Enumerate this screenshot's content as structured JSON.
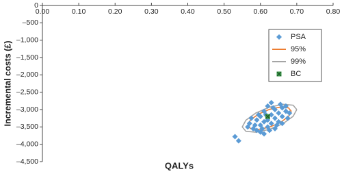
{
  "chart_data": {
    "type": "scatter",
    "xlabel": "QALYs",
    "ylabel": "Incremental costs (£)",
    "xlim": [
      0,
      0.8
    ],
    "ylim": [
      -4500,
      0
    ],
    "xticks": [
      {
        "value": 0,
        "label": "0.00"
      },
      {
        "value": 0.1,
        "label": "0.10"
      },
      {
        "value": 0.2,
        "label": "0.20"
      },
      {
        "value": 0.3,
        "label": "0.30"
      },
      {
        "value": 0.4,
        "label": "0.40"
      },
      {
        "value": 0.5,
        "label": "0.50"
      },
      {
        "value": 0.6,
        "label": "0.60"
      },
      {
        "value": 0.7,
        "label": "0.70"
      },
      {
        "value": 0.8,
        "label": "0.80"
      }
    ],
    "yticks": [
      0,
      {
        "value": -500,
        "label": "–500"
      },
      {
        "value": -1000,
        "label": "–1,000"
      },
      {
        "value": -1500,
        "label": "–1,500"
      },
      {
        "value": -2000,
        "label": "–2,000"
      },
      {
        "value": -2500,
        "label": "–2,500"
      },
      {
        "value": -3000,
        "label": "–3,000"
      },
      {
        "value": -3500,
        "label": "–3,500"
      },
      {
        "value": -4000,
        "label": "–4,000"
      },
      {
        "value": -4500,
        "label": "–4,500"
      }
    ],
    "grid": false,
    "legend": "right",
    "series": [
      {
        "name": "PSA",
        "color": "#5b9bd5",
        "marker": "diamond",
        "x": [
          0.53,
          0.54,
          0.57,
          0.58,
          0.59,
          0.6,
          0.6,
          0.61,
          0.61,
          0.62,
          0.62,
          0.63,
          0.63,
          0.64,
          0.64,
          0.65,
          0.65,
          0.66,
          0.66,
          0.67,
          0.62,
          0.63,
          0.68,
          0.59,
          0.6,
          0.575,
          0.605,
          0.615,
          0.625,
          0.635,
          0.645,
          0.655,
          0.585,
          0.595,
          0.565,
          0.67,
          0.61,
          0.64,
          0.66,
          0.675
        ],
        "values": [
          -3780,
          -3900,
          -3400,
          -3550,
          -3300,
          -3450,
          -3200,
          -3350,
          -3050,
          -3500,
          -3300,
          -3150,
          -3400,
          -3250,
          -3000,
          -3100,
          -3350,
          -2950,
          -3200,
          -3050,
          -2900,
          -2800,
          -3100,
          -3600,
          -3650,
          -3250,
          -3550,
          -3150,
          -3600,
          -2950,
          -3450,
          -2850,
          -3450,
          -3150,
          -3500,
          -2900,
          -3700,
          -3550,
          -3400,
          -3250
        ]
      },
      {
        "name": "95%",
        "color": "#ed7d31",
        "marker": "line",
        "x": [
          0.685,
          0.677,
          0.655,
          0.625,
          0.595,
          0.573,
          0.565,
          0.573,
          0.595,
          0.625,
          0.655,
          0.677,
          0.685
        ],
        "values": [
          -3050,
          -2949,
          -2928,
          -2994,
          -3128,
          -3295,
          -3450,
          -3551,
          -3572,
          -3506,
          -3372,
          -3201,
          -3050
        ]
      },
      {
        "name": "99%",
        "color": "#a5a5a5",
        "marker": "line",
        "x": [
          0.7,
          0.69,
          0.6625,
          0.625,
          0.5875,
          0.56,
          0.55,
          0.56,
          0.5875,
          0.625,
          0.6625,
          0.69,
          0.7
        ],
        "values": [
          -3000,
          -2874,
          -2848,
          -2930,
          -3098,
          -3306,
          -3500,
          -3626,
          -3652,
          -3570,
          -3402,
          -3194,
          -3000
        ]
      },
      {
        "name": "BC",
        "color": "#3a9a4a",
        "marker": "square-x",
        "x": [
          0.62
        ],
        "values": [
          -3200
        ]
      }
    ]
  }
}
